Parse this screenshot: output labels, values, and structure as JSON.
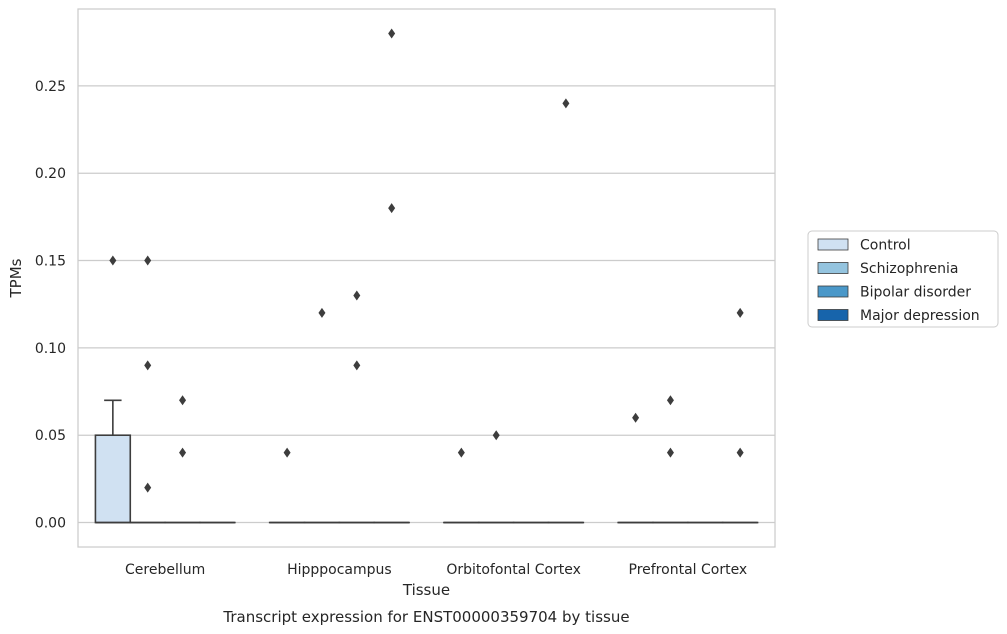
{
  "caption": "Transcript expression for ENST00000359704 by tissue",
  "chart_data": {
    "type": "box",
    "title": "",
    "xlabel": "Tissue",
    "ylabel": "TPMs",
    "ylim": [
      -0.014,
      0.294
    ],
    "yticks": [
      "0.00",
      "0.05",
      "0.10",
      "0.15",
      "0.20",
      "0.25"
    ],
    "ytick_values": [
      0,
      0.05,
      0.1,
      0.15,
      0.2,
      0.25
    ],
    "grid": "horizontal",
    "legend_position": "right",
    "categories": [
      "Cerebellum",
      "Hipppocampus",
      "Orbitofontal Cortex",
      "Prefrontal Cortex"
    ],
    "series": [
      {
        "name": "Control",
        "color": "#d0e1f2",
        "boxes": [
          {
            "q1": 0,
            "median": 0,
            "q3": 0.05,
            "whisker_low": 0,
            "whisker_high": 0.07,
            "outliers": [
              0.15
            ]
          },
          {
            "q1": 0,
            "median": 0,
            "q3": 0,
            "whisker_low": 0,
            "whisker_high": 0,
            "outliers": [
              0.04
            ]
          },
          {
            "q1": 0,
            "median": 0,
            "q3": 0,
            "whisker_low": 0,
            "whisker_high": 0,
            "outliers": [
              0.04
            ]
          },
          {
            "q1": 0,
            "median": 0,
            "q3": 0,
            "whisker_low": 0,
            "whisker_high": 0,
            "outliers": [
              0.06
            ]
          }
        ]
      },
      {
        "name": "Schizophrenia",
        "color": "#94c4df",
        "boxes": [
          {
            "q1": 0,
            "median": 0,
            "q3": 0,
            "whisker_low": 0,
            "whisker_high": 0,
            "outliers": [
              0.02,
              0.09,
              0.15
            ]
          },
          {
            "q1": 0,
            "median": 0,
            "q3": 0,
            "whisker_low": 0,
            "whisker_high": 0,
            "outliers": [
              0.12
            ]
          },
          {
            "q1": 0,
            "median": 0,
            "q3": 0,
            "whisker_low": 0,
            "whisker_high": 0,
            "outliers": [
              0.05
            ]
          },
          {
            "q1": 0,
            "median": 0,
            "q3": 0,
            "whisker_low": 0,
            "whisker_high": 0,
            "outliers": [
              0.04,
              0.07
            ]
          }
        ]
      },
      {
        "name": "Bipolar disorder",
        "color": "#4a98c9",
        "boxes": [
          {
            "q1": 0,
            "median": 0,
            "q3": 0,
            "whisker_low": 0,
            "whisker_high": 0,
            "outliers": [
              0.04,
              0.07
            ]
          },
          {
            "q1": 0,
            "median": 0,
            "q3": 0,
            "whisker_low": 0,
            "whisker_high": 0,
            "outliers": [
              0.09,
              0.13
            ]
          },
          {
            "q1": 0,
            "median": 0,
            "q3": 0,
            "whisker_low": 0,
            "whisker_high": 0,
            "outliers": []
          },
          {
            "q1": 0,
            "median": 0,
            "q3": 0,
            "whisker_low": 0,
            "whisker_high": 0,
            "outliers": []
          }
        ]
      },
      {
        "name": "Major depression",
        "color": "#1764ab",
        "boxes": [
          {
            "q1": 0,
            "median": 0,
            "q3": 0,
            "whisker_low": 0,
            "whisker_high": 0,
            "outliers": []
          },
          {
            "q1": 0,
            "median": 0,
            "q3": 0,
            "whisker_low": 0,
            "whisker_high": 0,
            "outliers": [
              0.18,
              0.28
            ]
          },
          {
            "q1": 0,
            "median": 0,
            "q3": 0,
            "whisker_low": 0,
            "whisker_high": 0,
            "outliers": [
              0.24
            ]
          },
          {
            "q1": 0,
            "median": 0,
            "q3": 0,
            "whisker_low": 0,
            "whisker_high": 0,
            "outliers": [
              0.04,
              0.12
            ]
          }
        ]
      }
    ]
  }
}
